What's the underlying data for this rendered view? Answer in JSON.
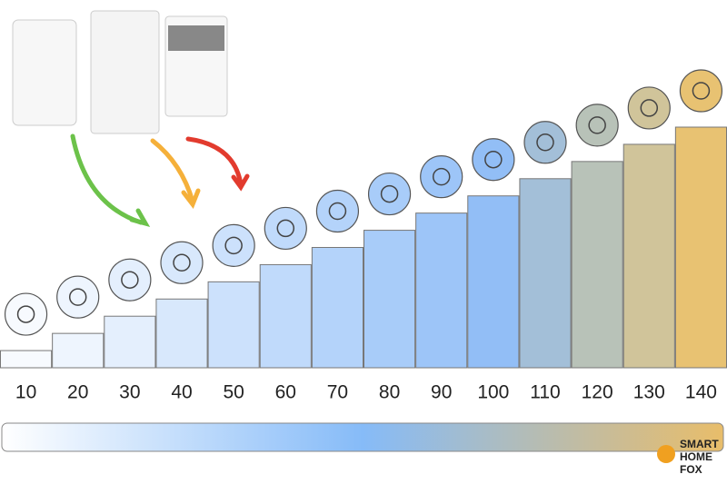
{
  "chart_data": {
    "type": "bar",
    "categories": [
      10,
      20,
      30,
      40,
      50,
      60,
      70,
      80,
      90,
      100,
      110,
      120,
      130,
      140
    ],
    "values": [
      10,
      20,
      30,
      40,
      50,
      60,
      70,
      80,
      90,
      100,
      110,
      120,
      130,
      140
    ],
    "colors": [
      "#f7fafe",
      "#eef5fe",
      "#e4effd",
      "#d8e8fc",
      "#cce1fc",
      "#c0dafb",
      "#b4d3fa",
      "#a8ccf9",
      "#9dc5f8",
      "#92bef6",
      "#a3bfd8",
      "#b8c2b8",
      "#d0c49a",
      "#e8c272"
    ],
    "ylim": [
      0,
      140
    ],
    "grid": false
  },
  "logo": {
    "lines": [
      "SMART",
      "HOME",
      "FOX"
    ]
  }
}
